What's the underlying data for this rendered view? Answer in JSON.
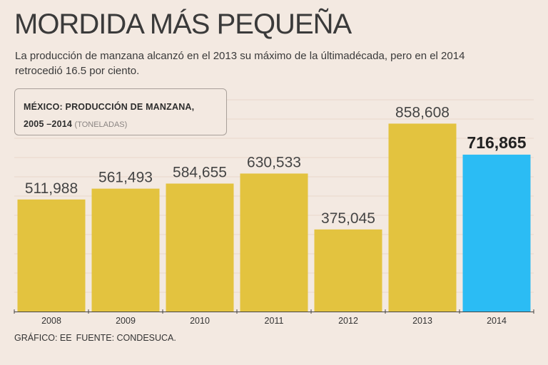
{
  "header": {
    "title": "MORDIDA MÁS PEQUEÑA",
    "subtitle": "La producción de manzana alcanzó en el 2013 su máximo de la últimadécada, pero en el 2014 retrocedió 16.5 por ciento."
  },
  "legend": {
    "line1": "MÉXICO: PRODUCCIÓN DE MANZANA,",
    "line2": "2005 –2014",
    "units": "(TONELADAS)"
  },
  "footer": {
    "credit": "GRÁFICO: EE",
    "source": "FUENTE: CONDESUCA."
  },
  "colors": {
    "bar": "#e3c33f",
    "highlight": "#2bbcf4",
    "grid": "#e8d6cb",
    "axis": "#444444"
  },
  "chart_data": {
    "type": "bar",
    "title": "MÉXICO: PRODUCCIÓN DE MANZANA, 2005 –2014 (TONELADAS)",
    "categories": [
      "2008",
      "2009",
      "2010",
      "2011",
      "2012",
      "2013",
      "2014"
    ],
    "values": [
      511988,
      561493,
      584655,
      630533,
      375045,
      858608,
      716865
    ],
    "value_labels": [
      "511,988",
      "561,493",
      "584,655",
      "630,533",
      "375,045",
      "858,608",
      "716,865"
    ],
    "highlight_index": 6,
    "xlabel": "",
    "ylabel": "Toneladas",
    "ylim": [
      0,
      1000000
    ],
    "grid": true
  }
}
